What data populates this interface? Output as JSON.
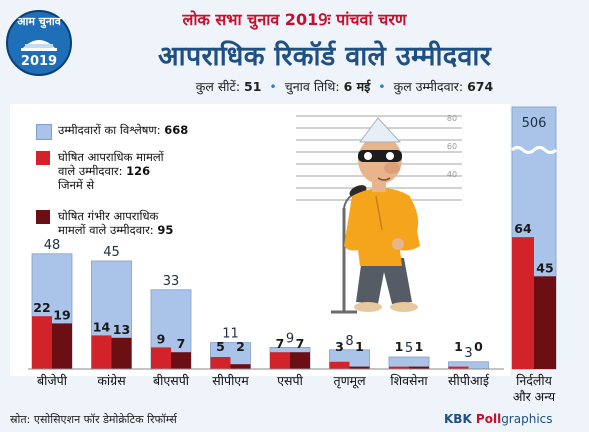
{
  "header": {
    "super_title": "लोक सभा चुनाव 2019ः पांचवां चरण",
    "main_title": "आपराधिक रिकॉर्ड वाले उम्मीदवार",
    "stats": {
      "seats_label": "कुल सीटें:",
      "seats_value": "51",
      "date_label": "चुनाव तिथि:",
      "date_value": "6 मई",
      "candidates_label": "कुल उम्मीदवार:",
      "candidates_value": "674"
    }
  },
  "logo": {
    "text": "आम चुनाव",
    "year": "2019",
    "icon": "parliament-icon"
  },
  "legend": {
    "total_label": "उम्मीदवारों का विश्लेषण:",
    "total_value": "668",
    "criminal_line1": "घोषित आपराधिक मामलों",
    "criminal_line2": "वाले उम्मीदवार:",
    "criminal_value": "126",
    "of_which": "जिनमें से",
    "serious_line1": "घोषित गंभीर आपराधिक",
    "serious_line2": "मामलों वाले उम्मीदवार:",
    "serious_value": "95"
  },
  "colors": {
    "background": "#eef4fa",
    "total": "#a9c4e8",
    "criminal": "#d2232a",
    "serious": "#6b0f14",
    "title_blue": "#1f4f83",
    "title_red": "#c8102e"
  },
  "chart_data": {
    "type": "bar",
    "title": "आपराधिक रिकॉर्ड वाले उम्मीदवार",
    "categories": [
      "बीजेपी",
      "कांग्रेस",
      "बीएसपी",
      "सीपीएम",
      "एसपी",
      "तृणमूल",
      "शिवसेना",
      "सीपीआई",
      "निर्दलीय और अन्य"
    ],
    "series": [
      {
        "name": "उम्मीदवारों का विश्लेषण",
        "values": [
          48,
          45,
          33,
          11,
          9,
          8,
          5,
          3,
          506
        ]
      },
      {
        "name": "घोषित आपराधिक मामलों वाले उम्मीदवार",
        "values": [
          22,
          14,
          9,
          5,
          7,
          3,
          1,
          1,
          64
        ]
      },
      {
        "name": "घोषित गंभीर आपराधिक मामलों वाले उम्मीदवार",
        "values": [
          19,
          13,
          7,
          2,
          7,
          1,
          1,
          0,
          45
        ]
      }
    ],
    "totals": {
      "analysed": 668,
      "criminal": 126,
      "serious": 95
    }
  },
  "illustration": {
    "height_chart_marks": [
      "80",
      "60",
      "40"
    ]
  },
  "footer": {
    "source": "स्रोत: एसोसिएशन फॉर डेमोक्रेटिक रिफॉर्म्स",
    "credit_kbk": "KBK ",
    "credit_poll": "Poll",
    "credit_graphics": "graphics"
  }
}
